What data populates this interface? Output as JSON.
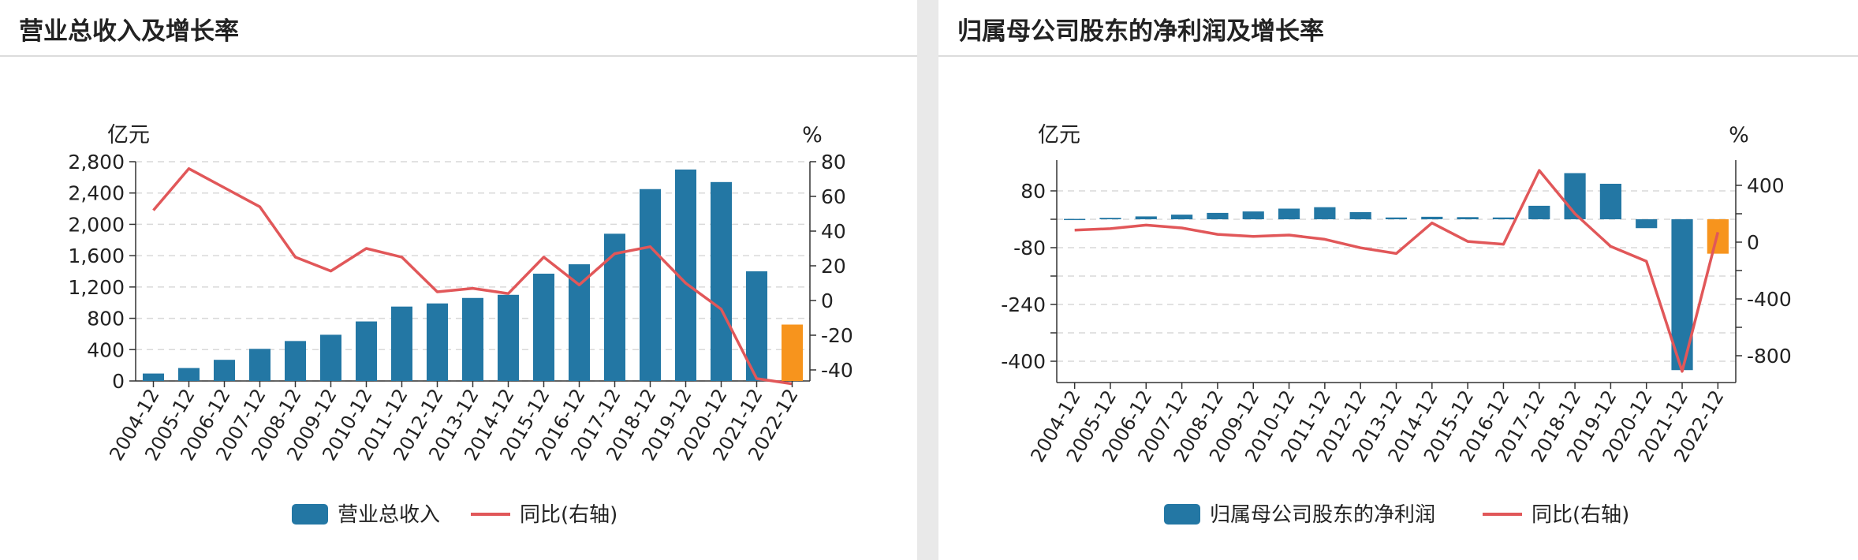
{
  "colors": {
    "bar": "#2377a4",
    "bar_highlight": "#f7941d",
    "line": "#e15759",
    "grid": "#d9d9d9",
    "axis": "#333333"
  },
  "charts": [
    {
      "title": "营业总收入及增长率",
      "chart_data": {
        "type": "bar+line",
        "categories": [
          "2004-12",
          "2005-12",
          "2006-12",
          "2007-12",
          "2008-12",
          "2009-12",
          "2010-12",
          "2011-12",
          "2012-12",
          "2013-12",
          "2014-12",
          "2015-12",
          "2016-12",
          "2017-12",
          "2018-12",
          "2019-12",
          "2020-12",
          "2021-12",
          "2022-12"
        ],
        "series": [
          {
            "name": "营业总收入",
            "type": "bar",
            "axis": "left",
            "values": [
              95,
              165,
              270,
              410,
              510,
              590,
              760,
              950,
              990,
              1060,
              1100,
              1370,
              1490,
              1880,
              2450,
              2700,
              2540,
              1400,
              720
            ],
            "highlight_last": true
          },
          {
            "name": "同比(右轴)",
            "type": "line",
            "axis": "right",
            "values": [
              52,
              76,
              65,
              54,
              25,
              17,
              30,
              25,
              5,
              7,
              4,
              25,
              9,
              27,
              31,
              10,
              -5,
              -45,
              -48
            ]
          }
        ],
        "left_axis": {
          "unit": "亿元",
          "ticks": [
            0,
            400,
            800,
            1200,
            1600,
            2000,
            2400,
            2800
          ],
          "tick_labels": [
            "0",
            "400",
            "800",
            "1,200",
            "1,600",
            "2,000",
            "2,400",
            "2,800"
          ]
        },
        "right_axis": {
          "unit": "%",
          "ticks": [
            -40,
            -20,
            0,
            20,
            40,
            60,
            80
          ],
          "tick_labels": [
            "-40",
            "-20",
            "0",
            "20",
            "40",
            "60",
            "80"
          ]
        },
        "grid": true,
        "legend": "bottom-center"
      }
    },
    {
      "title": "归属母公司股东的净利润及增长率",
      "chart_data": {
        "type": "bar+line",
        "categories": [
          "2004-12",
          "2005-12",
          "2006-12",
          "2007-12",
          "2008-12",
          "2009-12",
          "2010-12",
          "2011-12",
          "2012-12",
          "2013-12",
          "2014-12",
          "2015-12",
          "2016-12",
          "2017-12",
          "2018-12",
          "2019-12",
          "2020-12",
          "2021-12",
          "2022-12"
        ],
        "series": [
          {
            "name": "归属母公司股东的净利润",
            "type": "bar",
            "axis": "left",
            "values": [
              1,
              4,
              8,
              13,
              18,
              22,
              30,
              34,
              20,
              5,
              7,
              6,
              5,
              38,
              130,
              100,
              -25,
              -425,
              -97
            ],
            "highlight_last": true
          },
          {
            "name": "同比(右轴)",
            "type": "line",
            "axis": "right",
            "values": [
              85,
              95,
              120,
              100,
              55,
              40,
              50,
              20,
              -40,
              -80,
              135,
              5,
              -15,
              505,
              200,
              -30,
              -135,
              -910,
              70
            ]
          }
        ],
        "left_axis": {
          "unit": "亿元",
          "ticks": [
            -400,
            -240,
            -80,
            80
          ],
          "tick_labels": [
            "-400",
            "-240",
            "-80",
            "80"
          ]
        },
        "right_axis": {
          "unit": "%",
          "ticks": [
            -800,
            -400,
            0,
            400
          ],
          "tick_labels": [
            "-800",
            "-400",
            "0",
            "400"
          ]
        },
        "grid": true,
        "legend": "bottom-center"
      }
    }
  ]
}
